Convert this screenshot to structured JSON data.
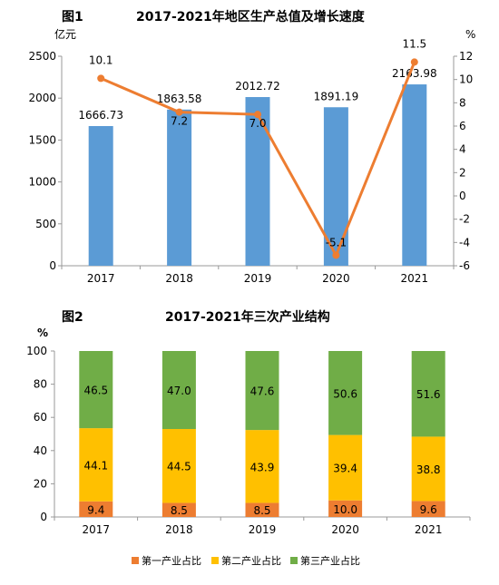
{
  "colors": {
    "bar_gdp": "#5b9bd5",
    "line_growth": "#ed7d31",
    "primary": "#ed7d31",
    "secondary": "#ffc000",
    "tertiary": "#70ad47",
    "axis": "#999999"
  },
  "chart_data": [
    {
      "type": "bar",
      "fig_label": "图1",
      "title": "2017-2021年地区生产总值及增长速度",
      "ylabel": "亿元",
      "y2label": "%",
      "categories": [
        "2017",
        "2018",
        "2019",
        "2020",
        "2021"
      ],
      "ylim": [
        0,
        2500
      ],
      "y_ticks": [
        "0",
        "500",
        "1000",
        "1500",
        "2000",
        "2500"
      ],
      "y2lim": [
        -6,
        12
      ],
      "y2_ticks": [
        "-6",
        "-4",
        "-2",
        "0",
        "2",
        "4",
        "6",
        "8",
        "10",
        "12"
      ],
      "series": [
        {
          "type": "bar",
          "axis": "left",
          "values": [
            1666.73,
            1863.58,
            2012.72,
            1891.19,
            2163.98
          ],
          "labels": [
            "1666.73",
            "1863.58",
            "2012.72",
            "1891.19",
            "2163.98"
          ]
        },
        {
          "type": "line",
          "axis": "right",
          "values": [
            10.1,
            7.2,
            7.0,
            -5.1,
            11.5
          ],
          "labels": [
            "10.1",
            "7.2",
            "7.0",
            "-5.1",
            "11.5"
          ]
        }
      ]
    },
    {
      "type": "bar",
      "stacked": true,
      "fig_label": "图2",
      "title": "2017-2021年三次产业结构",
      "ylabel": "%",
      "categories": [
        "2017",
        "2018",
        "2019",
        "2020",
        "2021"
      ],
      "ylim": [
        0,
        100
      ],
      "y_ticks": [
        "0",
        "20",
        "40",
        "60",
        "80",
        "100"
      ],
      "legend_position": "bottom",
      "series": [
        {
          "name": "第一产业占比",
          "values": [
            9.4,
            8.5,
            8.5,
            10.0,
            9.6
          ],
          "labels": [
            "9.4",
            "8.5",
            "8.5",
            "10.0",
            "9.6"
          ]
        },
        {
          "name": "第二产业占比",
          "values": [
            44.1,
            44.5,
            43.9,
            39.4,
            38.8
          ],
          "labels": [
            "44.1",
            "44.5",
            "43.9",
            "39.4",
            "38.8"
          ]
        },
        {
          "name": "第三产业占比",
          "values": [
            46.5,
            47.0,
            47.6,
            50.6,
            51.6
          ],
          "labels": [
            "46.5",
            "47.0",
            "47.6",
            "50.6",
            "51.6"
          ]
        }
      ]
    }
  ]
}
